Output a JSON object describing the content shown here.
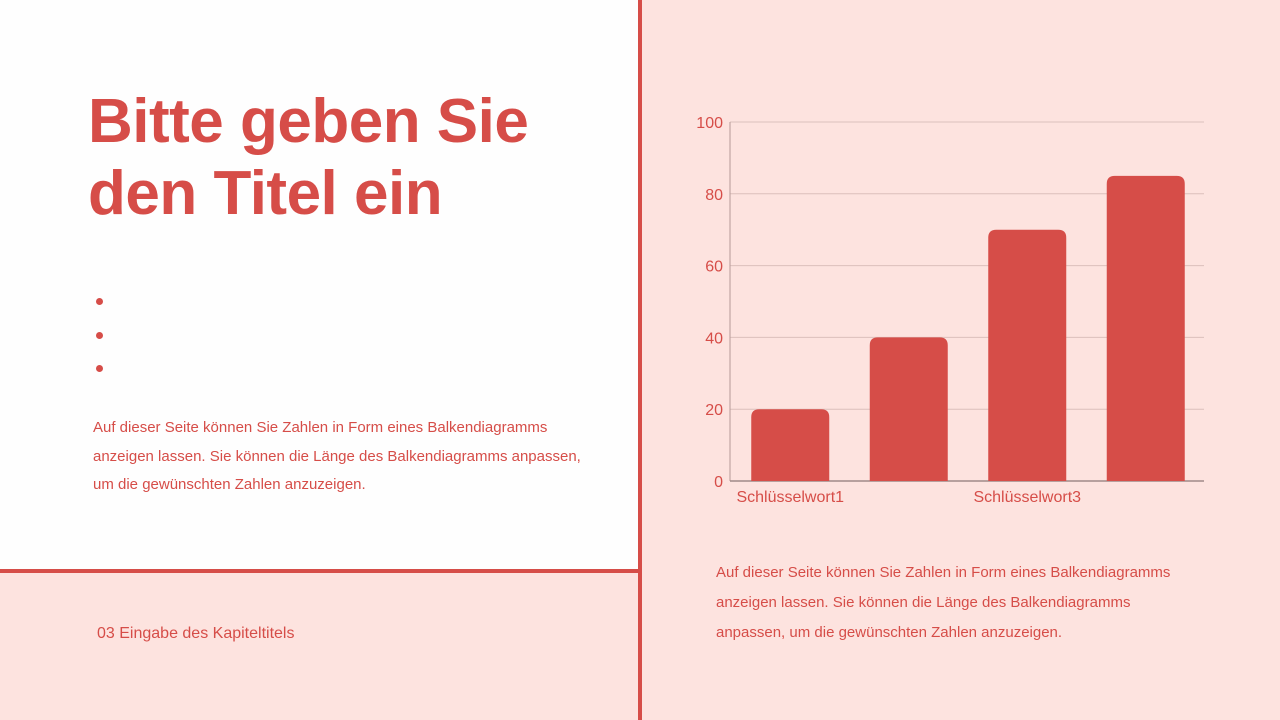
{
  "title": "Bitte geben Sie den Titel ein",
  "bullets": [
    "",
    "",
    ""
  ],
  "left_paragraph": "Auf dieser Seite können Sie Zahlen in Form eines Balkendiagramms anzeigen lassen. Sie können die Länge des Balkendiagramms anpassen, um die gewünschten Zahlen anzuzeigen.",
  "right_paragraph": "Auf dieser Seite können Sie Zahlen in Form eines Balkendiagramms anzeigen lassen. Sie können die Länge des Balkendiagramms anpassen, um die gewünschten Zahlen anzuzeigen.",
  "chapter": "03 Eingabe des Kapiteltitels",
  "colors": {
    "accent": "#d64d48",
    "background_right": "#fde3df",
    "background_left": "#fefefe"
  },
  "chart_data": {
    "type": "bar",
    "categories": [
      "Schlüsselwort1",
      "",
      "Schlüsselwort3",
      ""
    ],
    "values": [
      20,
      40,
      70,
      85
    ],
    "ylim": [
      0,
      100
    ],
    "yticks": [
      0,
      20,
      40,
      60,
      80,
      100
    ],
    "grid": true,
    "bar_color": "#d64d48"
  }
}
